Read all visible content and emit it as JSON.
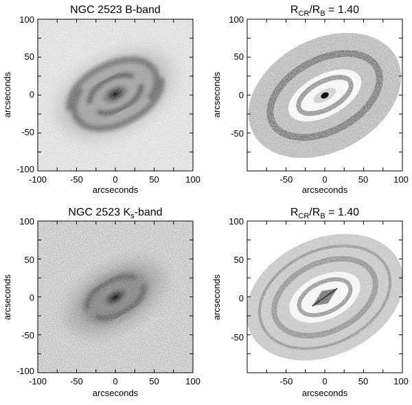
{
  "figure": {
    "panels": [
      {
        "id": "b-band",
        "kind": "observation",
        "title_main": "NGC 2523 B-band",
        "title_sub": "",
        "title_tail": "",
        "xlabel": "arcseconds",
        "ylabel": "arcseconds",
        "x_ticks": [
          "-100",
          "-50",
          "0",
          "50",
          "100"
        ],
        "y_ticks": [
          "100",
          "50",
          "0",
          "-50",
          "-100"
        ],
        "colors": {
          "image": "#4a4a4a",
          "background": "#e8e8e8"
        }
      },
      {
        "id": "model-top",
        "kind": "model",
        "title_main": "R",
        "title_sub": "CR",
        "title_mid": "/R",
        "title_sub2": "B",
        "title_tail": " = 1.40",
        "xlabel": "arcseconds",
        "ylabel": "arcseconds",
        "x_ticks": [
          "-50",
          "0",
          "50",
          "100"
        ],
        "y_ticks": [
          "100",
          "50",
          "0",
          "-50"
        ],
        "colors": {
          "image": "#6a6a6a",
          "background": "#ffffff"
        }
      },
      {
        "id": "ks-band",
        "kind": "observation",
        "title_main": "NGC 2523 K",
        "title_sub": "s",
        "title_tail": "-band",
        "xlabel": "arcseconds",
        "ylabel": "arcseconds",
        "x_ticks": [
          "-100",
          "-50",
          "0",
          "50",
          "100"
        ],
        "y_ticks": [
          "100",
          "50",
          "0",
          "-50",
          "-100"
        ],
        "colors": {
          "image": "#3a3a3a",
          "background": "#dcdcdc"
        }
      },
      {
        "id": "model-bottom",
        "kind": "model",
        "title_main": "R",
        "title_sub": "CR",
        "title_mid": "/R",
        "title_sub2": "B",
        "title_tail": " = 1.40",
        "xlabel": "arcseconds",
        "ylabel": "arcseconds",
        "x_ticks": [
          "-50",
          "0",
          "50",
          "100"
        ],
        "y_ticks": [
          "100",
          "50",
          "0",
          "-50"
        ],
        "colors": {
          "image": "#7a7a7a",
          "background": "#ffffff"
        }
      }
    ]
  }
}
